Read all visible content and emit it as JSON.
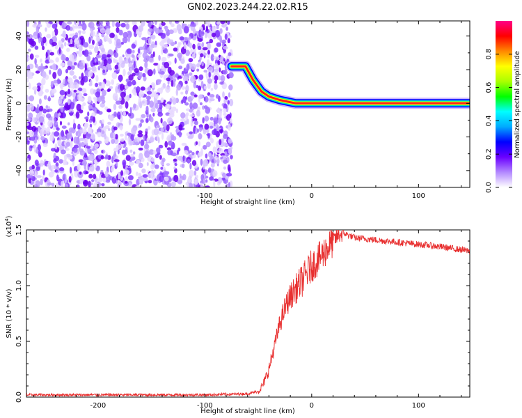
{
  "title": "GN02.2023.244.22.02.R15",
  "chart_data": [
    {
      "type": "heatmap",
      "xlabel": "Height of straight line (km)",
      "ylabel": "Frequency (Hz)",
      "xlim": [
        -267,
        148
      ],
      "ylim": [
        -50,
        49
      ],
      "x_ticks": [
        -200,
        -100,
        0,
        100
      ],
      "y_ticks": [
        -40,
        -20,
        0,
        20,
        40
      ],
      "x_tick_labels": [
        "-200",
        "-100",
        "0",
        "100"
      ],
      "y_tick_labels": [
        "-40",
        "-20",
        "0",
        "20",
        "40"
      ],
      "noise_region_x": [
        -267,
        -75
      ],
      "ridge": [
        {
          "x": -75,
          "y": 22
        },
        {
          "x": -62,
          "y": 22
        },
        {
          "x": -55,
          "y": 14
        },
        {
          "x": -47,
          "y": 7
        },
        {
          "x": -40,
          "y": 4
        },
        {
          "x": -30,
          "y": 2
        },
        {
          "x": -15,
          "y": 0
        },
        {
          "x": 148,
          "y": 0
        }
      ],
      "colorbar": {
        "label": "Normalized spectral amplitude",
        "range": [
          0.0,
          1.0
        ],
        "ticks": [
          0.0,
          0.2,
          0.4,
          0.6,
          0.8
        ],
        "tick_labels": [
          "0.0",
          "0.2",
          "0.4",
          "0.6",
          "0.8"
        ],
        "colors": [
          "#ffffff",
          "#b388ff",
          "#6a00ff",
          "#0000ff",
          "#00aaff",
          "#00ffff",
          "#00ff00",
          "#aaff00",
          "#ffff00",
          "#ff8800",
          "#ff0000",
          "#ff0088"
        ]
      }
    },
    {
      "type": "line",
      "xlabel": "Height of straight line (km)",
      "ylabel": "SNR (10 * v/v)",
      "y_scale_label": "(x10",
      "y_scale_exp": "4",
      "y_scale_close": ")",
      "xlim": [
        -267,
        148
      ],
      "ylim": [
        0,
        1.5
      ],
      "x_ticks": [
        -200,
        -100,
        0,
        100
      ],
      "y_ticks": [
        0.0,
        0.5,
        1.0,
        1.5
      ],
      "x_tick_labels": [
        "-200",
        "-100",
        "0",
        "100"
      ],
      "y_tick_labels": [
        "0.0",
        "0.5",
        "1.0",
        "1.5"
      ],
      "line_color": "#e83030",
      "series": [
        {
          "x": [
            -267,
            -200,
            -150,
            -100,
            -60,
            -50,
            -45,
            -40,
            -35,
            -30,
            -25,
            -20,
            -15,
            -10,
            -5,
            0,
            5,
            10,
            15,
            20,
            25,
            30,
            40,
            60,
            80,
            100,
            120,
            148
          ],
          "values": [
            0.02,
            0.02,
            0.02,
            0.02,
            0.03,
            0.05,
            0.12,
            0.25,
            0.45,
            0.65,
            0.8,
            0.9,
            0.97,
            1.03,
            1.1,
            1.18,
            1.22,
            1.28,
            1.34,
            1.4,
            1.45,
            1.47,
            1.43,
            1.41,
            1.39,
            1.37,
            1.35,
            1.31
          ]
        }
      ]
    }
  ]
}
